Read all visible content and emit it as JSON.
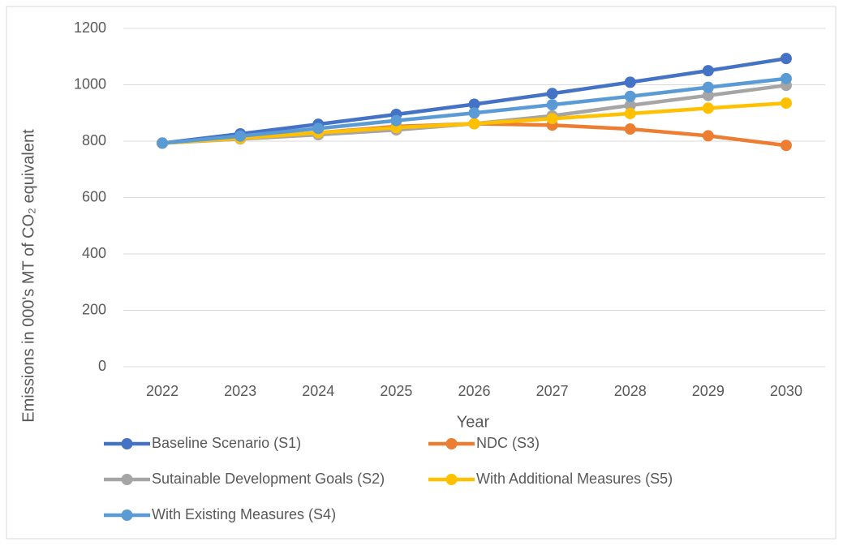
{
  "chart_data": {
    "type": "line",
    "x_label": "Year",
    "y_label": "Emissions in 000's MT of CO₂ equivalent",
    "categories": [
      "2022",
      "2023",
      "2024",
      "2025",
      "2026",
      "2027",
      "2028",
      "2029",
      "2030"
    ],
    "series": [
      {
        "name": "Baseline Scenario (S1)",
        "color": "#4472c4",
        "values": [
          793,
          826,
          860,
          895,
          931,
          969,
          1009,
          1050,
          1093
        ]
      },
      {
        "name": "NDC (S3)",
        "color": "#ed7d31",
        "values": [
          793,
          810,
          830,
          852,
          862,
          857,
          843,
          819,
          785
        ]
      },
      {
        "name": "Sutainable Development Goals (S2)",
        "color": "#a5a5a5",
        "values": [
          793,
          808,
          823,
          840,
          862,
          890,
          927,
          962,
          998
        ]
      },
      {
        "name": "With Additional Measures (S5)",
        "color": "#ffc000",
        "values": [
          793,
          810,
          830,
          848,
          862,
          880,
          898,
          917,
          935
        ]
      },
      {
        "name": "With Existing Measures (S4)",
        "color": "#5b9bd5",
        "values": [
          793,
          818,
          845,
          873,
          900,
          929,
          959,
          991,
          1022
        ]
      }
    ],
    "ylim": [
      0,
      1200
    ],
    "yticks": [
      0,
      200,
      400,
      600,
      800,
      1000,
      1200
    ],
    "grid": true,
    "legend": "bottom"
  }
}
